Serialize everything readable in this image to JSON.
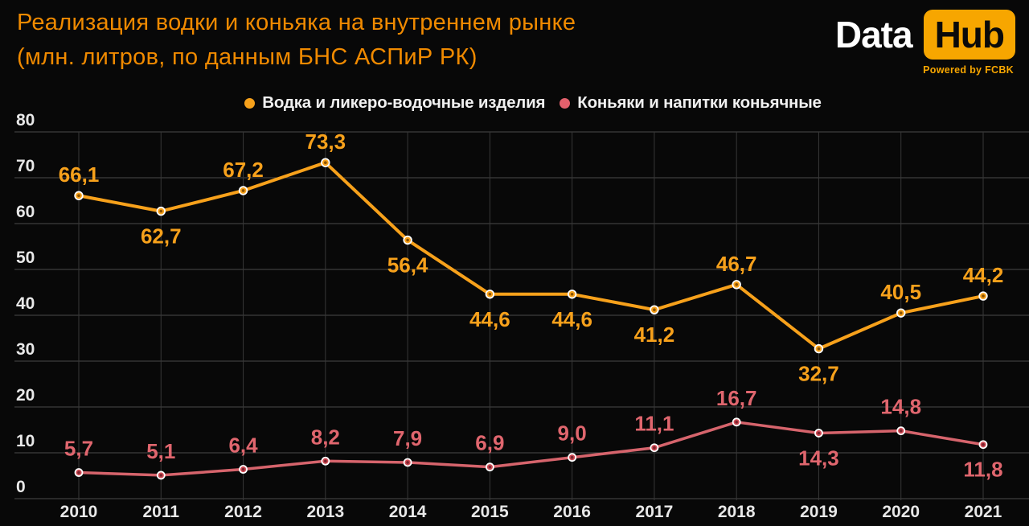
{
  "title": {
    "line1": "Реализация водки и коньяка на внутреннем рынке",
    "line2": "(млн. литров, по данным БНС АСПиР РК)"
  },
  "logo": {
    "word1": "Data",
    "word2": "Hub",
    "tagline": "Powered by FCBK"
  },
  "colors": {
    "background": "#080808",
    "title": "#F08A00",
    "vodka": "#F7A11B",
    "cognac_line": "#D6646C",
    "cognac_marker": "#CE4A54",
    "cognac_label": "#E0666E",
    "tick_text": "#E8E8E8",
    "grid_horizontal": "#4A4A4A",
    "grid_vertical": "#383838",
    "logo_accent": "#F7A600"
  },
  "legend": {
    "items": [
      {
        "label": "Водка и ликеро-водочные изделия",
        "color": "#F7A11B"
      },
      {
        "label": "Коньяки и напитки коньячные",
        "color": "#E2606C"
      }
    ]
  },
  "chart_data": {
    "type": "line",
    "x": [
      "2010",
      "2011",
      "2012",
      "2013",
      "2014",
      "2015",
      "2016",
      "2017",
      "2018",
      "2019",
      "2020",
      "2021"
    ],
    "ylim": [
      0,
      80
    ],
    "yticks": [
      0,
      10,
      20,
      30,
      40,
      50,
      60,
      70,
      80
    ],
    "grid": "horizontal and vertical gridlines",
    "legend_position": "top",
    "series": [
      {
        "name": "Водка и ликеро-водочные изделия",
        "color": "#F7A11B",
        "marker_fill": "#F7A11B",
        "marker_center": "#8A5200",
        "label_color": "#F7A11B",
        "label_offset_above": -17,
        "label_offset_below": 40,
        "line_width": 4,
        "values": [
          66.1,
          62.7,
          67.2,
          73.3,
          56.4,
          44.6,
          44.6,
          41.2,
          46.7,
          32.7,
          40.5,
          44.2
        ],
        "labels": [
          "66,1",
          "62,7",
          "67,2",
          "73,3",
          "56,4",
          "44,6",
          "44,6",
          "41,2",
          "46,7",
          "32,7",
          "40,5",
          "44,2"
        ],
        "label_side": [
          "above",
          "below",
          "above",
          "above",
          "below",
          "below",
          "below",
          "below",
          "above",
          "below",
          "above",
          "above"
        ]
      },
      {
        "name": "Коньяки и напитки коньячные",
        "color": "#D6646C",
        "marker_fill": "#CE4A54",
        "marker_center": "#7A242E",
        "label_color": "#E0666E",
        "label_offset_above": -21,
        "label_offset_below": 40,
        "line_width": 3.5,
        "values": [
          5.7,
          5.1,
          6.4,
          8.2,
          7.9,
          6.9,
          9.0,
          11.1,
          16.7,
          14.3,
          14.8,
          11.8
        ],
        "labels": [
          "5,7",
          "5,1",
          "6,4",
          "8,2",
          "7,9",
          "6,9",
          "9,0",
          "11,1",
          "16,7",
          "14,3",
          "14,8",
          "11,8"
        ],
        "label_side": [
          "above",
          "above",
          "above",
          "above",
          "above",
          "above",
          "above",
          "above",
          "above",
          "below",
          "above",
          "below"
        ]
      }
    ]
  }
}
